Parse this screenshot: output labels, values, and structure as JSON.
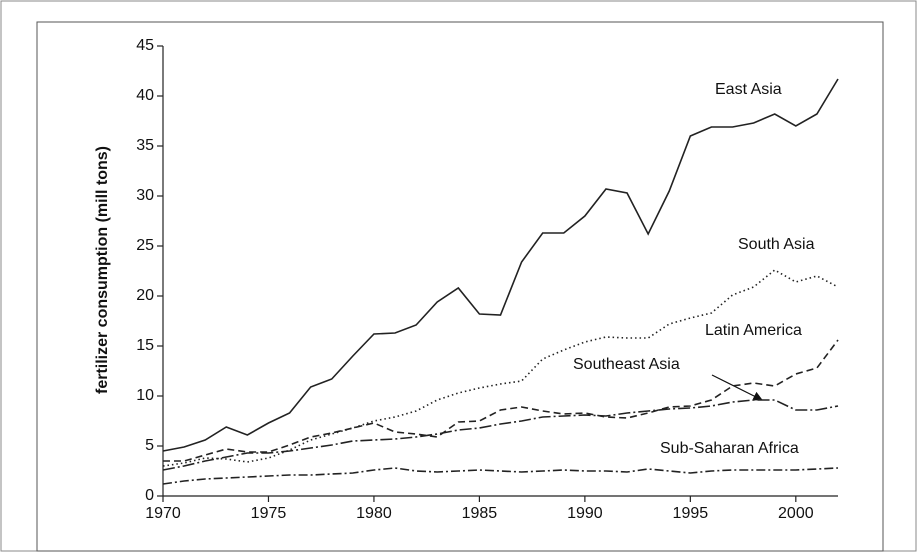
{
  "chart_data": {
    "type": "line",
    "y_label": "fertilizer consumption (mill tons)",
    "x": [
      1970,
      1971,
      1972,
      1973,
      1974,
      1975,
      1976,
      1977,
      1978,
      1979,
      1980,
      1981,
      1982,
      1983,
      1984,
      1985,
      1986,
      1987,
      1988,
      1989,
      1990,
      1991,
      1992,
      1993,
      1994,
      1995,
      1996,
      1997,
      1998,
      1999,
      2000,
      2001,
      2002
    ],
    "series": [
      {
        "name": "East Asia",
        "color": "#222222",
        "values": [
          4.5,
          4.9,
          5.6,
          6.9,
          6.1,
          7.3,
          8.3,
          10.9,
          11.7,
          14.0,
          16.2,
          16.3,
          17.1,
          19.4,
          20.8,
          18.2,
          18.1,
          23.4,
          26.3,
          26.3,
          28.0,
          30.7,
          30.3,
          26.2,
          30.5,
          36.0,
          36.9,
          36.9,
          37.3,
          38.2,
          37.0,
          38.2,
          41.7
        ]
      },
      {
        "name": "South Asia",
        "color": "#222222",
        "values": [
          3.0,
          3.3,
          3.8,
          3.7,
          3.4,
          3.8,
          4.6,
          5.6,
          6.2,
          6.8,
          7.5,
          7.9,
          8.5,
          9.6,
          10.3,
          10.8,
          11.2,
          11.5,
          13.7,
          14.6,
          15.4,
          15.9,
          15.8,
          15.8,
          17.2,
          17.8,
          18.3,
          20.1,
          20.9,
          22.6,
          21.4,
          22.0,
          20.9
        ]
      },
      {
        "name": "Latin America",
        "color": "#222222",
        "values": [
          3.5,
          3.5,
          4.1,
          4.7,
          4.4,
          4.4,
          5.1,
          5.9,
          6.3,
          6.8,
          7.3,
          6.4,
          6.2,
          5.9,
          7.4,
          7.5,
          8.6,
          8.9,
          8.5,
          8.2,
          8.3,
          7.9,
          7.8,
          8.3,
          8.9,
          9.0,
          9.6,
          11.0,
          11.3,
          11.0,
          12.2,
          12.8,
          15.6
        ]
      },
      {
        "name": "Southeast Asia",
        "color": "#222222",
        "values": [
          2.6,
          3.0,
          3.5,
          3.9,
          4.3,
          4.3,
          4.5,
          4.8,
          5.1,
          5.5,
          5.6,
          5.7,
          5.9,
          6.2,
          6.6,
          6.8,
          7.2,
          7.5,
          7.9,
          8.0,
          8.1,
          8.0,
          8.3,
          8.5,
          8.7,
          8.8,
          9.0,
          9.4,
          9.6,
          9.6,
          8.6,
          8.6,
          9.0
        ]
      },
      {
        "name": "Sub-Saharan Africa",
        "color": "#222222",
        "values": [
          1.2,
          1.5,
          1.7,
          1.8,
          1.9,
          2.0,
          2.1,
          2.1,
          2.2,
          2.3,
          2.6,
          2.8,
          2.5,
          2.4,
          2.5,
          2.6,
          2.5,
          2.4,
          2.5,
          2.6,
          2.5,
          2.5,
          2.4,
          2.7,
          2.5,
          2.3,
          2.5,
          2.6,
          2.6,
          2.6,
          2.6,
          2.7,
          2.8
        ]
      }
    ],
    "xlim": [
      1970,
      2002
    ],
    "xticks": [
      1970,
      1975,
      1980,
      1985,
      1990,
      1995,
      2000
    ],
    "ylim": [
      0,
      45
    ],
    "yticks": [
      0,
      5,
      10,
      15,
      20,
      25,
      30,
      35,
      40,
      45
    ]
  }
}
